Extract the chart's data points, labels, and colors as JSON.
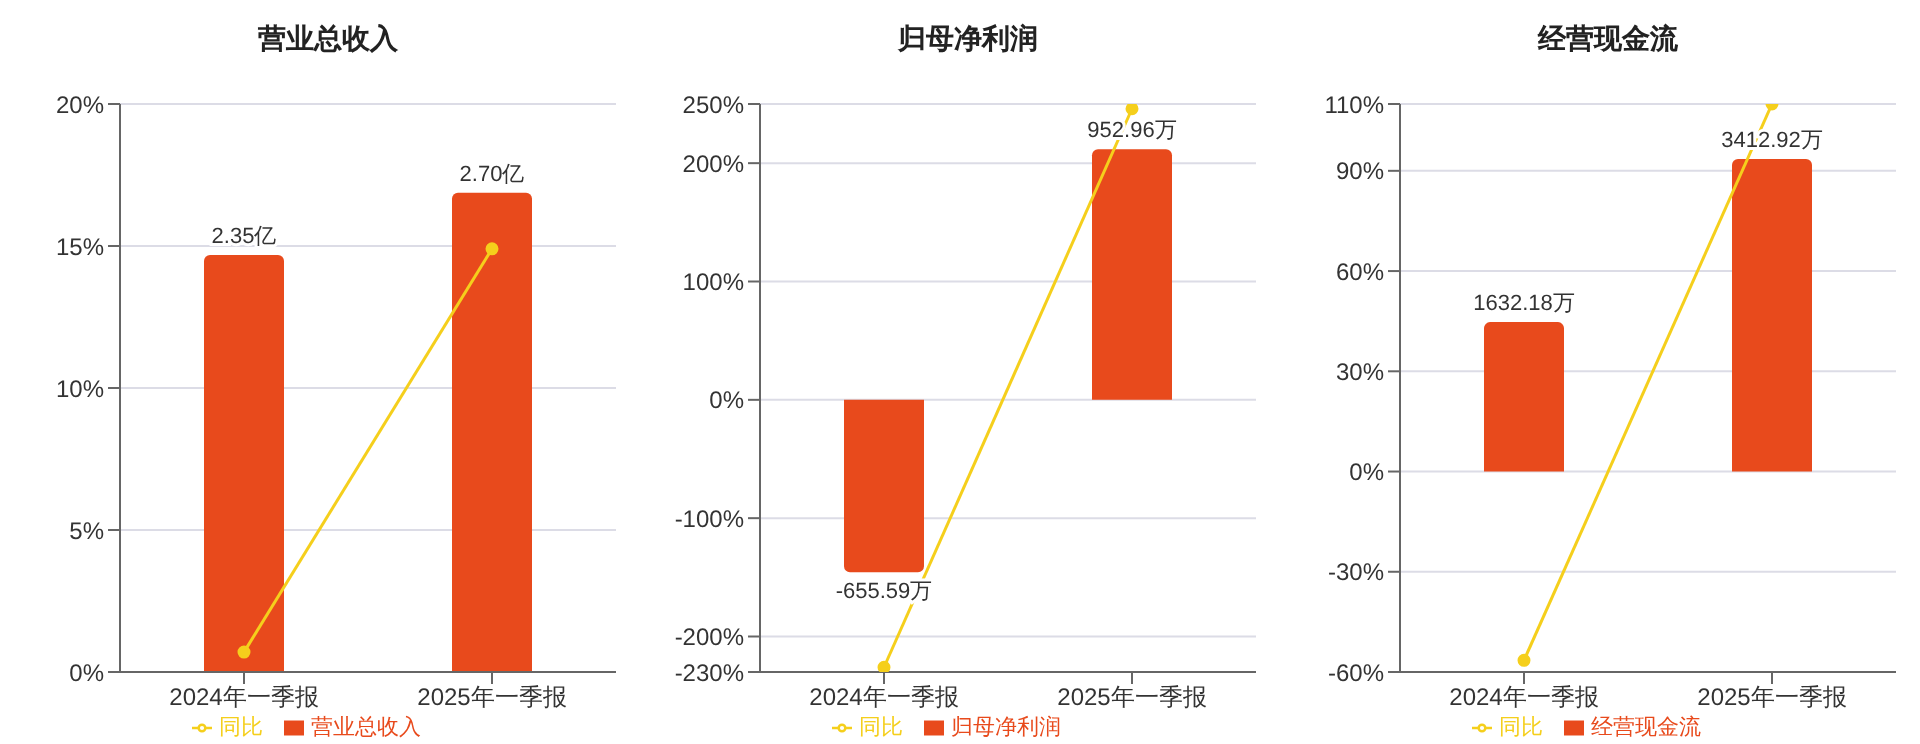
{
  "chart_data": [
    {
      "type": "bar",
      "title": "营业总收入",
      "categories": [
        "2024年一季报",
        "2025年一季报"
      ],
      "series": [
        {
          "name": "营业总收入",
          "color": "#e84a1c",
          "values": [
            2.35,
            2.7
          ],
          "value_labels": [
            "2.35亿",
            "2.70亿"
          ],
          "axis": "y2"
        },
        {
          "name": "同比",
          "type": "line",
          "color": "#f5cf1c",
          "values": [
            0.7,
            14.9
          ]
        }
      ],
      "ylim": [
        0,
        20
      ],
      "yticks": [
        {
          "value": 0,
          "label": "0%"
        },
        {
          "value": 5,
          "label": "5%"
        },
        {
          "value": 10,
          "label": "10%"
        },
        {
          "value": 15,
          "label": "15%"
        },
        {
          "value": 20,
          "label": "20%"
        }
      ],
      "y2lim": [
        0,
        3.2
      ],
      "grid": "y",
      "legend": "bottom",
      "marker": "circle"
    },
    {
      "type": "bar",
      "title": "归母净利润",
      "categories": [
        "2024年一季报",
        "2025年一季报"
      ],
      "series": [
        {
          "name": "归母净利润",
          "color": "#e84a1c",
          "values": [
            -655.59,
            952.96
          ],
          "value_labels": [
            "-655.59万",
            "952.96万"
          ],
          "axis": "y2"
        },
        {
          "name": "同比",
          "type": "line",
          "color": "#f5cf1c",
          "values": [
            -226,
            246
          ]
        }
      ],
      "ylim": [
        -230,
        250
      ],
      "yticks": [
        {
          "value": -230,
          "label": "-230%"
        },
        {
          "value": -200,
          "label": "-200%"
        },
        {
          "value": -100,
          "label": "-100%"
        },
        {
          "value": 0,
          "label": "0%"
        },
        {
          "value": 100,
          "label": "100%"
        },
        {
          "value": 200,
          "label": "200%"
        },
        {
          "value": 250,
          "label": "250%"
        }
      ],
      "y2lim": [
        -1035,
        1125
      ],
      "grid": "y",
      "legend": "bottom",
      "marker": "circle"
    },
    {
      "type": "bar",
      "title": "经营现金流",
      "categories": [
        "2024年一季报",
        "2025年一季报"
      ],
      "series": [
        {
          "name": "经营现金流",
          "color": "#e84a1c",
          "values": [
            1632.18,
            3412.92
          ],
          "value_labels": [
            "1632.18万",
            "3412.92万"
          ],
          "axis": "y2"
        },
        {
          "name": "同比",
          "type": "line",
          "color": "#f5cf1c",
          "values": [
            -56.5,
            110
          ]
        }
      ],
      "ylim": [
        -60,
        110
      ],
      "yticks": [
        {
          "value": -60,
          "label": "-60%"
        },
        {
          "value": -30,
          "label": "-30%"
        },
        {
          "value": 0,
          "label": "0%"
        },
        {
          "value": 30,
          "label": "30%"
        },
        {
          "value": 60,
          "label": "60%"
        },
        {
          "value": 90,
          "label": "90%"
        },
        {
          "value": 110,
          "label": "110%"
        }
      ],
      "y2lim": [
        -2190,
        4015
      ],
      "grid": "y",
      "legend": "bottom",
      "marker": "circle"
    }
  ]
}
